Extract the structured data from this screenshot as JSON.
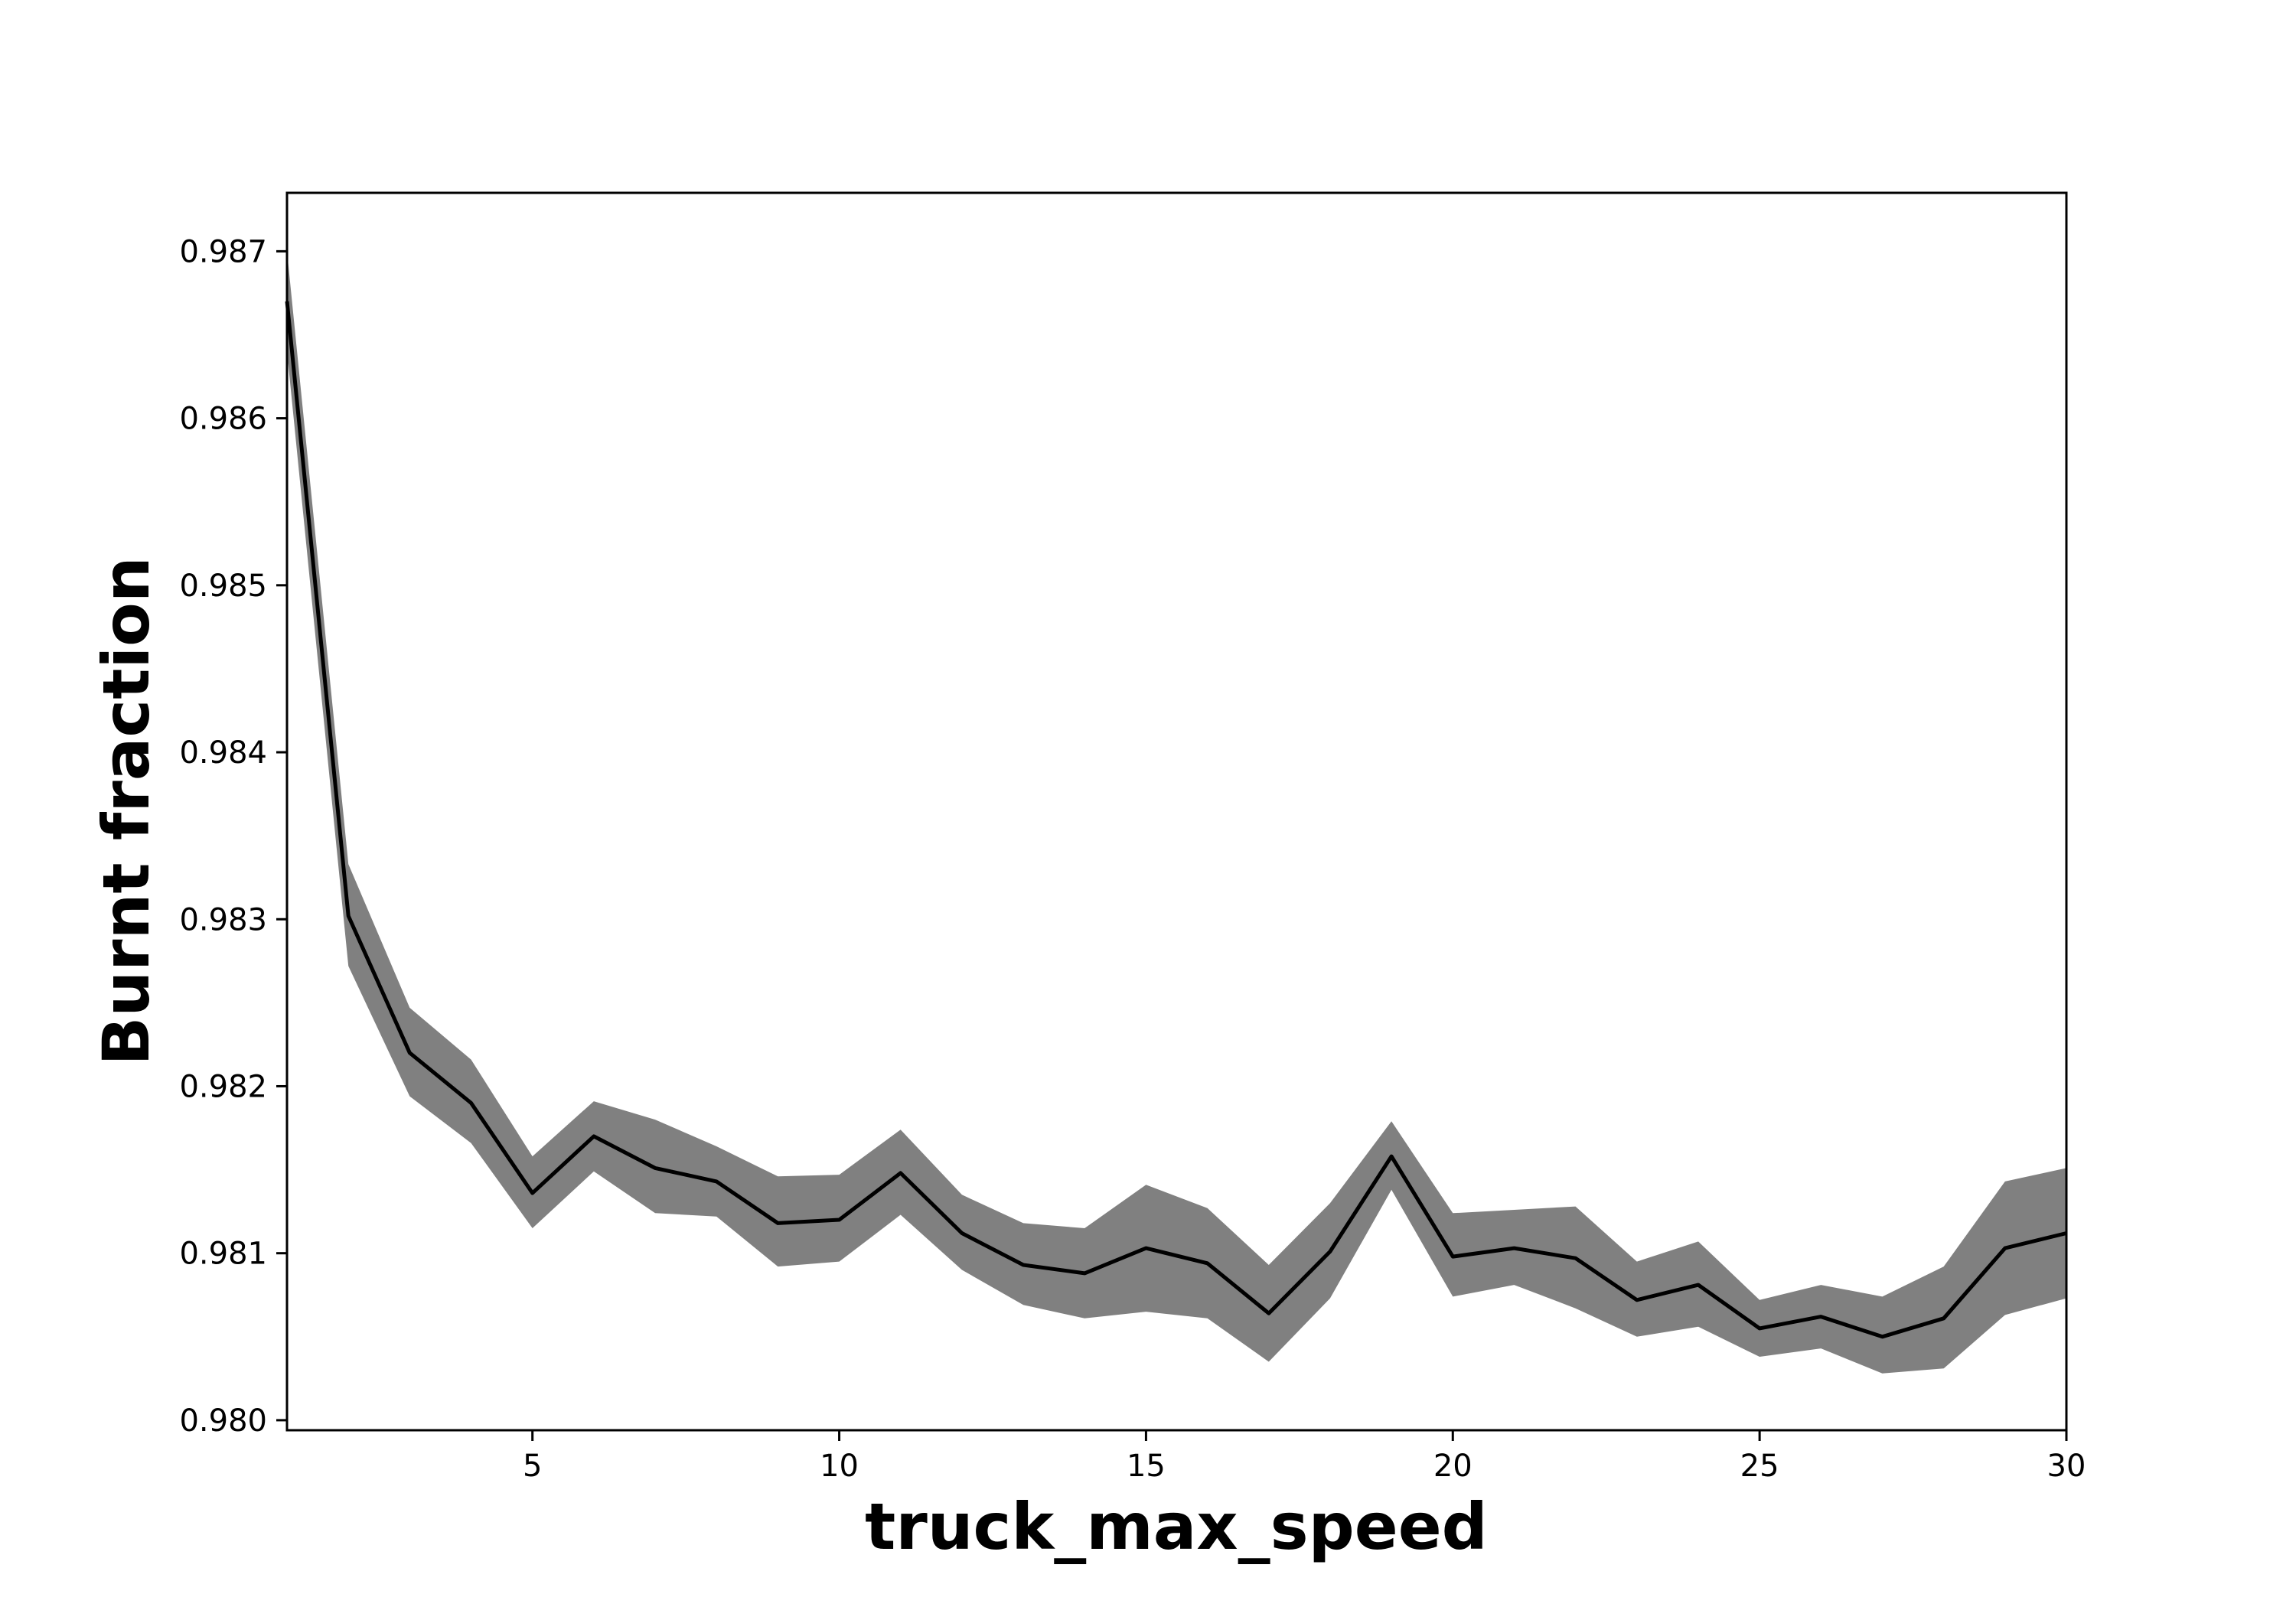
{
  "chart_data": {
    "type": "line",
    "title": "",
    "xlabel": "truck_max_speed",
    "ylabel": "Burnt fraction",
    "xlim": [
      1,
      30
    ],
    "ylim": [
      0.97994,
      0.98735
    ],
    "xticks": [
      5,
      10,
      15,
      20,
      25,
      30
    ],
    "yticks": [
      0.98,
      0.981,
      0.982,
      0.983,
      0.984,
      0.985,
      0.986,
      0.987
    ],
    "ytick_labels": [
      "0.980",
      "0.981",
      "0.982",
      "0.983",
      "0.984",
      "0.985",
      "0.986",
      "0.987"
    ],
    "grid": false,
    "legend": "none",
    "series": [
      {
        "x": [
          1,
          2,
          3,
          4,
          5,
          6,
          7,
          8,
          9,
          10,
          11,
          12,
          13,
          14,
          15,
          16,
          17,
          18,
          19,
          20,
          21,
          22,
          23,
          24,
          25,
          26,
          27,
          28,
          29,
          30
        ],
        "values": [
          0.9867,
          0.98302,
          0.9822,
          0.9819,
          0.98136,
          0.9817,
          0.98151,
          0.98143,
          0.98118,
          0.9812,
          0.98148,
          0.98112,
          0.98093,
          0.98088,
          0.98103,
          0.98094,
          0.98064,
          0.98101,
          0.98158,
          0.98098,
          0.98103,
          0.98097,
          0.98072,
          0.98081,
          0.98055,
          0.98062,
          0.9805,
          0.98061,
          0.98103,
          0.98112
        ],
        "lower": [
          0.9864,
          0.98272,
          0.98194,
          0.98166,
          0.98115,
          0.98149,
          0.98124,
          0.98122,
          0.98092,
          0.98095,
          0.98123,
          0.9809,
          0.98069,
          0.98061,
          0.98065,
          0.98061,
          0.98035,
          0.98073,
          0.98138,
          0.98074,
          0.98081,
          0.98067,
          0.9805,
          0.98056,
          0.98038,
          0.98043,
          0.98028,
          0.98031,
          0.98063,
          0.98073
        ],
        "upper": [
          0.987,
          0.98333,
          0.98247,
          0.98216,
          0.98158,
          0.98191,
          0.9818,
          0.98164,
          0.98146,
          0.98147,
          0.98174,
          0.98135,
          0.98118,
          0.98115,
          0.98141,
          0.98127,
          0.98093,
          0.9813,
          0.98179,
          0.98124,
          0.98126,
          0.98128,
          0.98095,
          0.98107,
          0.98072,
          0.98081,
          0.98074,
          0.98092,
          0.98143,
          0.98151
        ],
        "line_color": "#000000",
        "band_color": "#808080"
      }
    ]
  }
}
